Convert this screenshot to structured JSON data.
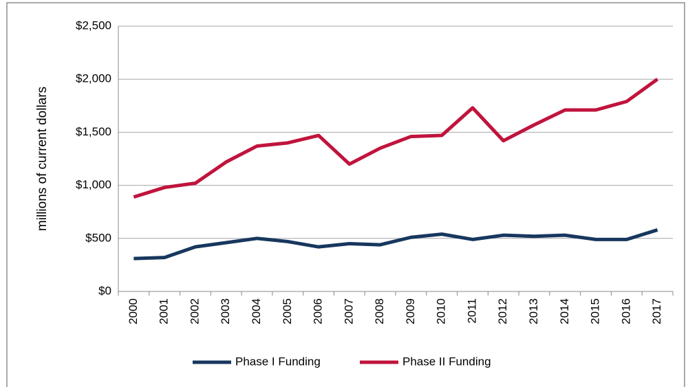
{
  "chart_data": {
    "type": "line",
    "y_label": "millions of current dollars",
    "categories": [
      "2000",
      "2001",
      "2002",
      "2003",
      "2004",
      "2005",
      "2006",
      "2007",
      "2008",
      "2009",
      "2010",
      "2011",
      "2012",
      "2013",
      "2014",
      "2015",
      "2016",
      "2017"
    ],
    "series": [
      {
        "name": "Phase I Funding",
        "color": "#17375e",
        "values": [
          310,
          320,
          420,
          460,
          500,
          470,
          420,
          450,
          440,
          510,
          540,
          490,
          530,
          520,
          530,
          490,
          490,
          580
        ]
      },
      {
        "name": "Phase II Funding",
        "color": "#c0143c",
        "values": [
          890,
          980,
          1020,
          1220,
          1370,
          1400,
          1470,
          1200,
          1350,
          1460,
          1470,
          1730,
          1420,
          1570,
          1710,
          1710,
          1790,
          2000
        ]
      }
    ],
    "ylim": [
      0,
      2500
    ],
    "yticks": [
      {
        "value": 0,
        "label": "$0"
      },
      {
        "value": 500,
        "label": "$500"
      },
      {
        "value": 1000,
        "label": "$1,000"
      },
      {
        "value": 1500,
        "label": "$1,500"
      },
      {
        "value": 2000,
        "label": "$2,000"
      },
      {
        "value": 2500,
        "label": "$2,500"
      }
    ],
    "grid": true,
    "legend": "bottom"
  }
}
